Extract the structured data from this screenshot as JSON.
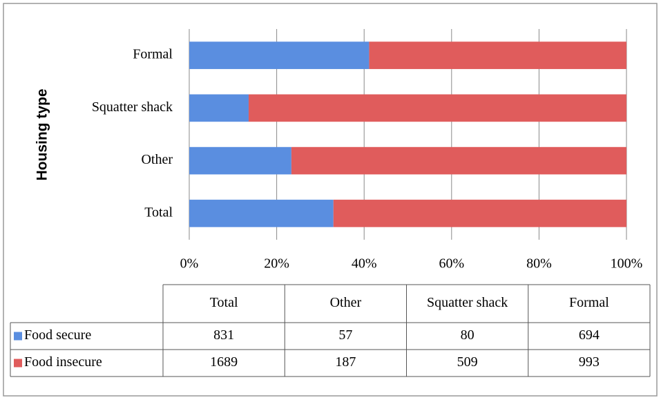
{
  "chart_data": {
    "type": "bar",
    "orientation": "horizontal",
    "stacking": "percent",
    "y_label": "Housing type",
    "categories": [
      "Total",
      "Other",
      "Squatter shack",
      "Formal"
    ],
    "series": [
      {
        "name": "Food secure",
        "color": "#5a8ee0",
        "values": [
          831,
          57,
          80,
          694
        ]
      },
      {
        "name": "Food insecure",
        "color": "#e05c5c",
        "values": [
          1689,
          187,
          509,
          993
        ]
      }
    ],
    "xlim": [
      0,
      100
    ],
    "xticks": [
      {
        "value": 0,
        "label": "0%"
      },
      {
        "value": 20,
        "label": "20%"
      },
      {
        "value": 40,
        "label": "40%"
      },
      {
        "value": 60,
        "label": "60%"
      },
      {
        "value": 80,
        "label": "80%"
      },
      {
        "value": 100,
        "label": "100%"
      }
    ],
    "grid": true,
    "data_table": true
  }
}
